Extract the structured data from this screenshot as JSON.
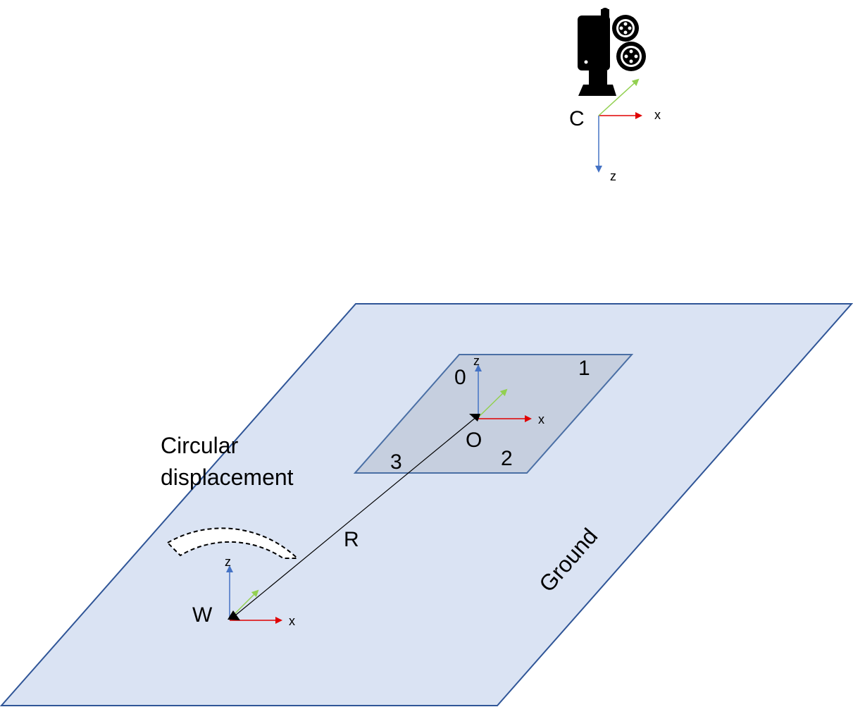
{
  "labels": {
    "camera": "C",
    "origin": "O",
    "world": "W",
    "radius": "R",
    "ground": "Ground",
    "displacement_line1": "Circular",
    "displacement_line2": "displacement",
    "x": "x",
    "z": "z"
  },
  "corners": [
    "0",
    "1",
    "2",
    "3"
  ],
  "icons": {
    "camera": "film-camera-icon"
  },
  "colors": {
    "ground_fill": "#dae3f3",
    "ground_stroke": "#2f5597",
    "plate_fill": "#c6cfdf",
    "plate_stroke": "#4a6fa5",
    "x_axis": "#e00000",
    "z_axis": "#4472c4",
    "y_axis": "#92d050"
  }
}
